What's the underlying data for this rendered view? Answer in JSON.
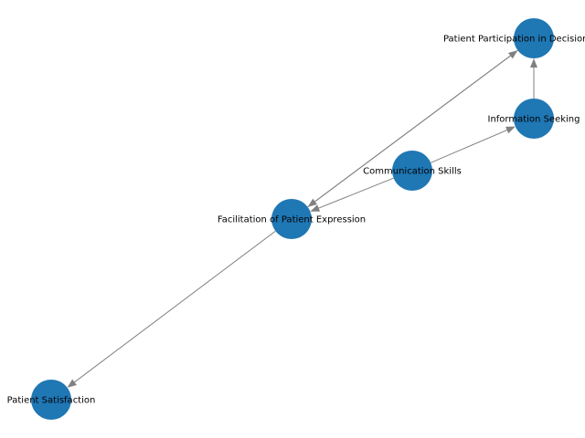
{
  "graph": {
    "node_color": "#1f77b4",
    "edge_color": "#808080",
    "label_color": "#000000",
    "directed": true,
    "nodes": [
      {
        "id": "participation",
        "label": "Patient Participation in Decision-Making"
      },
      {
        "id": "info",
        "label": "Information Seeking"
      },
      {
        "id": "comm",
        "label": "Communication Skills"
      },
      {
        "id": "facil",
        "label": "Facilitation of Patient Expression"
      },
      {
        "id": "satis",
        "label": "Patient Satisfaction"
      }
    ],
    "edges": [
      {
        "from": "comm",
        "to": "facil"
      },
      {
        "from": "comm",
        "to": "info"
      },
      {
        "from": "info",
        "to": "participation"
      },
      {
        "from": "facil",
        "to": "participation"
      },
      {
        "from": "participation",
        "to": "facil"
      },
      {
        "from": "facil",
        "to": "satis"
      }
    ]
  }
}
